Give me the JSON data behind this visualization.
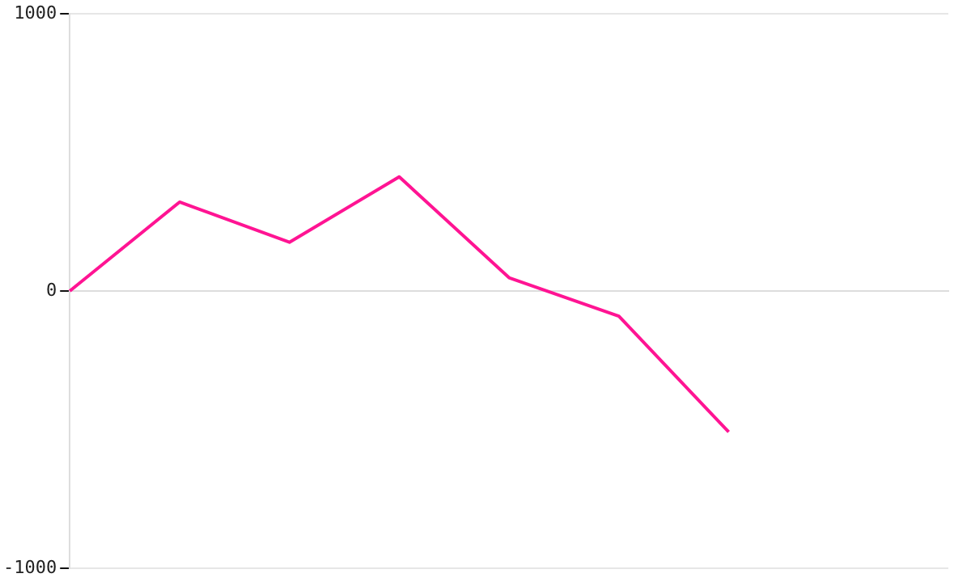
{
  "chart_data": {
    "type": "line",
    "categories": [
      null,
      null,
      null,
      null,
      null,
      null,
      null,
      null,
      null
    ],
    "series": [
      {
        "color": "#ff1493",
        "values": [
          0,
          321,
          176,
          412,
          48,
          -91,
          -509,
          null,
          null
        ]
      }
    ],
    "ylim": [
      -1000,
      1000
    ],
    "yticks": [
      -1000,
      0,
      1000
    ],
    "grid": "y",
    "tick_labels": "y",
    "legend": false,
    "marker": "none",
    "line_style": "solid"
  }
}
